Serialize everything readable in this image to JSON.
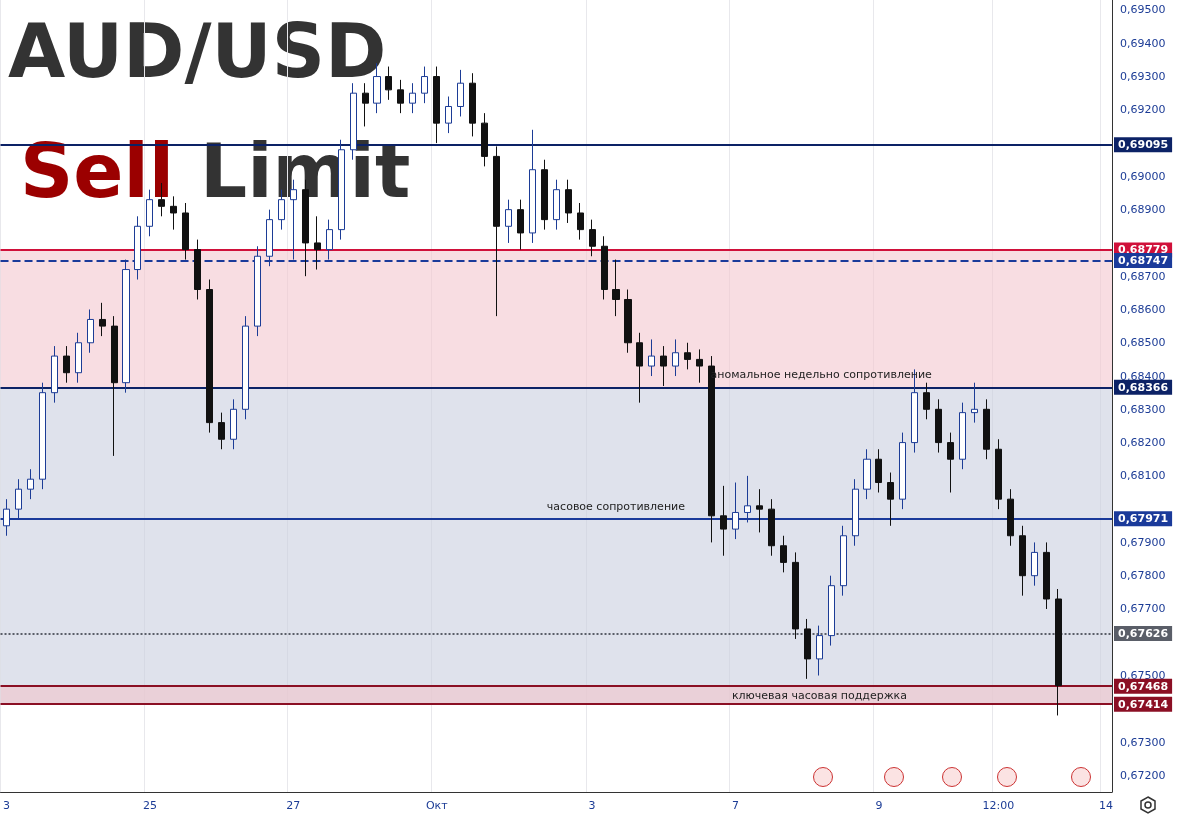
{
  "chart_data": {
    "type": "candlestick",
    "title": "AUD/USD",
    "subtitle": "Sell Limit",
    "categories": [
      "3",
      null,
      null,
      null,
      null,
      null,
      null,
      null,
      null,
      null,
      null,
      null,
      "25",
      null,
      null,
      null,
      null,
      null,
      null,
      null,
      null,
      null,
      null,
      null,
      "27",
      null,
      null,
      null,
      null,
      null,
      null,
      null,
      null,
      null,
      null,
      null,
      "Окт",
      null,
      null,
      null,
      null,
      null,
      null,
      null,
      null,
      null,
      null,
      null,
      null,
      "3",
      null,
      null,
      null,
      null,
      null,
      null,
      null,
      null,
      null,
      null,
      null,
      "7",
      null,
      null,
      null,
      null,
      null,
      null,
      null,
      null,
      null,
      null,
      null,
      "9",
      null,
      null,
      null,
      null,
      null,
      null,
      null,
      null,
      null,
      "12:00",
      null,
      null,
      null,
      null,
      null,
      null,
      null,
      null,
      "14"
    ],
    "ohlc": [
      [
        0.6795,
        0.6803,
        0.6792,
        0.68
      ],
      [
        0.68,
        0.6809,
        0.6797,
        0.6806
      ],
      [
        0.6806,
        0.6812,
        0.6803,
        0.6809
      ],
      [
        0.6809,
        0.6838,
        0.6806,
        0.6835
      ],
      [
        0.6835,
        0.6849,
        0.6832,
        0.6846
      ],
      [
        0.6846,
        0.6849,
        0.6838,
        0.6841
      ],
      [
        0.6841,
        0.6853,
        0.6838,
        0.685
      ],
      [
        0.685,
        0.686,
        0.6847,
        0.6857
      ],
      [
        0.6857,
        0.6862,
        0.6852,
        0.6855
      ],
      [
        0.6855,
        0.6858,
        0.6816,
        0.6838
      ],
      [
        0.6838,
        0.6875,
        0.6835,
        0.6872
      ],
      [
        0.6872,
        0.6888,
        0.6869,
        0.6885
      ],
      [
        0.6885,
        0.6896,
        0.6882,
        0.6893
      ],
      [
        0.6893,
        0.6898,
        0.6888,
        0.6891
      ],
      [
        0.6891,
        0.6894,
        0.6884,
        0.6889
      ],
      [
        0.6889,
        0.6892,
        0.6875,
        0.6878
      ],
      [
        0.6878,
        0.6881,
        0.6863,
        0.6866
      ],
      [
        0.6866,
        0.6869,
        0.6823,
        0.6826
      ],
      [
        0.6826,
        0.6829,
        0.6818,
        0.6821
      ],
      [
        0.6821,
        0.6833,
        0.6818,
        0.683
      ],
      [
        0.683,
        0.6858,
        0.6827,
        0.6855
      ],
      [
        0.6855,
        0.6879,
        0.6852,
        0.6876
      ],
      [
        0.6876,
        0.689,
        0.6873,
        0.6887
      ],
      [
        0.6887,
        0.6896,
        0.6884,
        0.6893
      ],
      [
        0.6893,
        0.6899,
        0.6875,
        0.6896
      ],
      [
        0.6896,
        0.6899,
        0.687,
        0.688
      ],
      [
        0.688,
        0.6888,
        0.6872,
        0.6878
      ],
      [
        0.6878,
        0.6887,
        0.6875,
        0.6884
      ],
      [
        0.6884,
        0.6911,
        0.6881,
        0.6908
      ],
      [
        0.6908,
        0.6928,
        0.6905,
        0.6925
      ],
      [
        0.6925,
        0.6928,
        0.6915,
        0.6922
      ],
      [
        0.6922,
        0.6934,
        0.6919,
        0.693
      ],
      [
        0.693,
        0.6933,
        0.6923,
        0.6926
      ],
      [
        0.6926,
        0.6929,
        0.6919,
        0.6922
      ],
      [
        0.6922,
        0.6928,
        0.6919,
        0.6925
      ],
      [
        0.6925,
        0.6933,
        0.6922,
        0.693
      ],
      [
        0.693,
        0.6933,
        0.691,
        0.6916
      ],
      [
        0.6916,
        0.6924,
        0.6913,
        0.6921
      ],
      [
        0.6921,
        0.6932,
        0.6918,
        0.6928
      ],
      [
        0.6928,
        0.6931,
        0.6912,
        0.6916
      ],
      [
        0.6916,
        0.6919,
        0.6903,
        0.6906
      ],
      [
        0.6906,
        0.6909,
        0.6858,
        0.6885
      ],
      [
        0.6885,
        0.6893,
        0.688,
        0.689
      ],
      [
        0.689,
        0.6893,
        0.6878,
        0.6883
      ],
      [
        0.6883,
        0.6914,
        0.688,
        0.6902
      ],
      [
        0.6902,
        0.6905,
        0.6884,
        0.6887
      ],
      [
        0.6887,
        0.6899,
        0.6884,
        0.6896
      ],
      [
        0.6896,
        0.6899,
        0.6886,
        0.6889
      ],
      [
        0.6889,
        0.6892,
        0.6881,
        0.6884
      ],
      [
        0.6884,
        0.6887,
        0.6876,
        0.6879
      ],
      [
        0.6879,
        0.6882,
        0.6863,
        0.6866
      ],
      [
        0.6866,
        0.6875,
        0.6858,
        0.6863
      ],
      [
        0.6863,
        0.6866,
        0.6847,
        0.685
      ],
      [
        0.685,
        0.6853,
        0.6832,
        0.6843
      ],
      [
        0.6843,
        0.6851,
        0.684,
        0.6846
      ],
      [
        0.6846,
        0.6849,
        0.6837,
        0.6843
      ],
      [
        0.6843,
        0.6851,
        0.684,
        0.6847
      ],
      [
        0.6847,
        0.685,
        0.6842,
        0.6845
      ],
      [
        0.6845,
        0.6848,
        0.6838,
        0.6843
      ],
      [
        0.6843,
        0.6846,
        0.679,
        0.6798
      ],
      [
        0.6798,
        0.6807,
        0.6786,
        0.6794
      ],
      [
        0.6794,
        0.6808,
        0.6791,
        0.6799
      ],
      [
        0.6799,
        0.681,
        0.6796,
        0.6801
      ],
      [
        0.6801,
        0.6806,
        0.6793,
        0.68
      ],
      [
        0.68,
        0.6803,
        0.6786,
        0.6789
      ],
      [
        0.6789,
        0.6792,
        0.6781,
        0.6784
      ],
      [
        0.6784,
        0.6787,
        0.6761,
        0.6764
      ],
      [
        0.6764,
        0.6767,
        0.6749,
        0.6755
      ],
      [
        0.6755,
        0.6765,
        0.675,
        0.6762
      ],
      [
        0.6762,
        0.678,
        0.6759,
        0.6777
      ],
      [
        0.6777,
        0.6795,
        0.6774,
        0.6792
      ],
      [
        0.6792,
        0.6809,
        0.6789,
        0.6806
      ],
      [
        0.6806,
        0.6818,
        0.6803,
        0.6815
      ],
      [
        0.6815,
        0.6818,
        0.6805,
        0.6808
      ],
      [
        0.6808,
        0.6811,
        0.6795,
        0.6803
      ],
      [
        0.6803,
        0.6823,
        0.68,
        0.682
      ],
      [
        0.682,
        0.6842,
        0.6817,
        0.6835
      ],
      [
        0.6835,
        0.6838,
        0.6827,
        0.683
      ],
      [
        0.683,
        0.6833,
        0.6817,
        0.682
      ],
      [
        0.682,
        0.6823,
        0.6805,
        0.6815
      ],
      [
        0.6815,
        0.6832,
        0.6812,
        0.6829
      ],
      [
        0.6829,
        0.6838,
        0.6826,
        0.683
      ],
      [
        0.683,
        0.6833,
        0.6815,
        0.6818
      ],
      [
        0.6818,
        0.6821,
        0.68,
        0.6803
      ],
      [
        0.6803,
        0.6806,
        0.6789,
        0.6792
      ],
      [
        0.6792,
        0.6795,
        0.6774,
        0.678
      ],
      [
        0.678,
        0.679,
        0.6777,
        0.6787
      ],
      [
        0.6787,
        0.679,
        0.677,
        0.6773
      ],
      [
        0.6773,
        0.6776,
        0.6738,
        0.6747
      ],
      null,
      null,
      null,
      null
    ],
    "ylim": [
      0.6715,
      0.6953
    ],
    "yticks": [
      {
        "value": 0.672,
        "label": "0,67200"
      },
      {
        "value": 0.673,
        "label": "0,67300"
      },
      {
        "value": 0.675,
        "label": "0,67500"
      },
      {
        "value": 0.677,
        "label": "0,67700"
      },
      {
        "value": 0.678,
        "label": "0,67800"
      },
      {
        "value": 0.679,
        "label": "0,67900"
      },
      {
        "value": 0.68,
        "label": null
      },
      {
        "value": 0.681,
        "label": "0,68100"
      },
      {
        "value": 0.682,
        "label": "0,68200"
      },
      {
        "value": 0.683,
        "label": "0,68300"
      },
      {
        "value": 0.684,
        "label": "0,68400"
      },
      {
        "value": 0.685,
        "label": "0,68500"
      },
      {
        "value": 0.686,
        "label": "0,68600"
      },
      {
        "value": 0.687,
        "label": "0,68700"
      },
      {
        "value": 0.689,
        "label": "0,68900"
      },
      {
        "value": 0.69,
        "label": "0,69000"
      },
      {
        "value": 0.691,
        "label": null
      },
      {
        "value": 0.692,
        "label": "0,69200"
      },
      {
        "value": 0.693,
        "label": "0,69300"
      },
      {
        "value": 0.694,
        "label": "0,69400"
      },
      {
        "value": 0.695,
        "label": "0,69500"
      }
    ],
    "grid": "x",
    "ref_lines": [
      {
        "axis": "y",
        "value": 0.69095,
        "label": "0,69095",
        "color": "#0c2266",
        "line_style": "solid"
      },
      {
        "axis": "y",
        "value": 0.68779,
        "label": "0,68779",
        "color": "#d0103a",
        "line_style": "solid"
      },
      {
        "axis": "y",
        "value": 0.68747,
        "label": "0,68747",
        "color": "#1a3a9a",
        "line_style": "dashed"
      },
      {
        "axis": "y",
        "value": 0.68366,
        "label": "0,68366",
        "color": "#0c2266",
        "line_style": "solid"
      },
      {
        "axis": "y",
        "value": 0.67971,
        "label": "0,67971",
        "color": "#1a3a9a",
        "line_style": "solid"
      },
      {
        "axis": "y",
        "value": 0.67626,
        "label": "0,67626",
        "color": "#5a5e68",
        "line_style": "dotted"
      },
      {
        "axis": "y",
        "value": 0.67468,
        "label": "0,67468",
        "color": "#8b0f24",
        "line_style": "solid"
      },
      {
        "axis": "y",
        "value": 0.67414,
        "label": "0,67414",
        "color": "#8b0f24",
        "line_style": "solid"
      }
    ],
    "bands": [
      {
        "axis": "y",
        "from": 0.68366,
        "to": 0.68779,
        "color": "#f4c6cf"
      },
      {
        "axis": "y",
        "from": 0.67414,
        "to": 0.68366,
        "color": "#c9cfe0"
      },
      {
        "axis": "y",
        "from": 0.67414,
        "to": 0.67468,
        "label": "ключевая часовая поддержка",
        "color": "#f2c4cc"
      }
    ],
    "annotations": [
      {
        "text": "аномальное недельно сопротивление",
        "y": 0.68366
      },
      {
        "text": "часовое сопротивление",
        "y": 0.67971
      }
    ]
  }
}
